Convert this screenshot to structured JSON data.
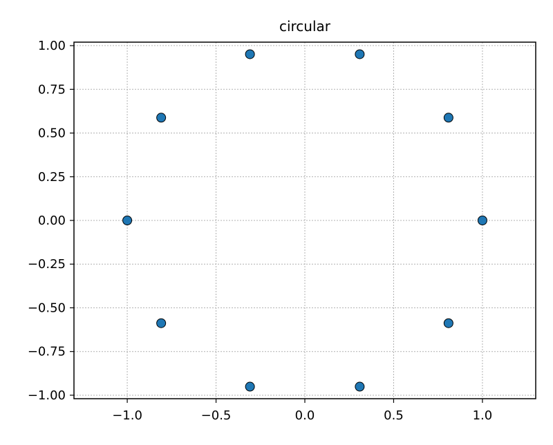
{
  "chart_data": {
    "type": "scatter",
    "title": "circular",
    "xlabel": "",
    "ylabel": "",
    "xlim": [
      -1.3,
      1.3
    ],
    "ylim": [
      -1.02,
      1.02
    ],
    "grid": true,
    "x_ticks": [
      -1.0,
      -0.5,
      0.0,
      0.5,
      1.0
    ],
    "x_tick_labels": [
      "−1.0",
      "−0.5",
      "0.0",
      "0.5",
      "1.0"
    ],
    "y_ticks": [
      1.0,
      0.75,
      0.5,
      0.25,
      0.0,
      -0.25,
      -0.5,
      -0.75,
      -1.0
    ],
    "y_tick_labels": [
      "1.00",
      "0.75",
      "0.50",
      "0.25",
      "0.00",
      "−0.25",
      "−0.50",
      "−0.75",
      "−1.00"
    ],
    "series": [
      {
        "color": "#1f77b4",
        "edge_color": "#000000",
        "points": [
          {
            "x": 1.0,
            "y": 0.0
          },
          {
            "x": 0.809,
            "y": 0.588
          },
          {
            "x": 0.309,
            "y": 0.951
          },
          {
            "x": -0.309,
            "y": 0.951
          },
          {
            "x": -0.809,
            "y": 0.588
          },
          {
            "x": -1.0,
            "y": 0.0
          },
          {
            "x": -0.809,
            "y": -0.588
          },
          {
            "x": -0.309,
            "y": -0.951
          },
          {
            "x": 0.309,
            "y": -0.951
          },
          {
            "x": 0.809,
            "y": -0.588
          }
        ]
      }
    ]
  }
}
